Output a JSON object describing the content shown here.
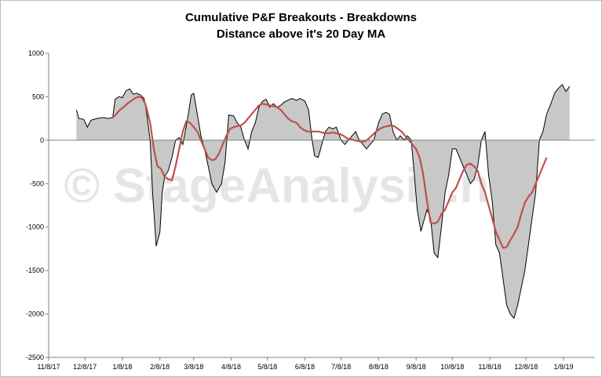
{
  "chart_data": {
    "type": "area",
    "title": "Cumulative P&F Breakouts - Breakdowns",
    "subtitle": "Distance above it's 20 Day MA",
    "watermark": "© StageAnalysis.net",
    "ylim": [
      -2500,
      1000
    ],
    "yticks": [
      1000,
      500,
      0,
      -500,
      -1000,
      -1500,
      -2000,
      -2500
    ],
    "xlim": [
      "2017-11-08",
      "2019-02-03"
    ],
    "xtick_labels": [
      {
        "date": "2017-11-08",
        "label": "11/8/17"
      },
      {
        "date": "2017-12-08",
        "label": "12/8/17"
      },
      {
        "date": "2018-01-08",
        "label": "1/8/18"
      },
      {
        "date": "2018-02-08",
        "label": "2/8/18"
      },
      {
        "date": "2018-03-08",
        "label": "3/8/18"
      },
      {
        "date": "2018-04-08",
        "label": "4/8/18"
      },
      {
        "date": "2018-05-08",
        "label": "5/8/18"
      },
      {
        "date": "2018-06-08",
        "label": "6/8/18"
      },
      {
        "date": "2018-07-08",
        "label": "7/8/18"
      },
      {
        "date": "2018-08-08",
        "label": "8/8/18"
      },
      {
        "date": "2018-09-08",
        "label": "9/8/18"
      },
      {
        "date": "2018-10-08",
        "label": "10/8/18"
      },
      {
        "date": "2018-11-08",
        "label": "11/8/18"
      },
      {
        "date": "2018-12-08",
        "label": "12/8/18"
      },
      {
        "date": "2019-01-08",
        "label": "1/8/19"
      }
    ],
    "colors": {
      "area_fill": "#c8c8c8",
      "series_line": "#000000",
      "ma_line": "#c0504d",
      "axis": "#808080"
    },
    "series": [
      {
        "type": "area",
        "points": [
          [
            "2017-12-01",
            350
          ],
          [
            "2017-12-03",
            250
          ],
          [
            "2017-12-07",
            240
          ],
          [
            "2017-12-10",
            150
          ],
          [
            "2017-12-13",
            230
          ],
          [
            "2017-12-18",
            250
          ],
          [
            "2017-12-23",
            260
          ],
          [
            "2017-12-27",
            250
          ],
          [
            "2017-12-31",
            260
          ],
          [
            "2018-01-02",
            470
          ],
          [
            "2018-01-05",
            500
          ],
          [
            "2018-01-08",
            490
          ],
          [
            "2018-01-11",
            570
          ],
          [
            "2018-01-14",
            590
          ],
          [
            "2018-01-17",
            530
          ],
          [
            "2018-01-20",
            540
          ],
          [
            "2018-01-23",
            520
          ],
          [
            "2018-01-26",
            480
          ],
          [
            "2018-01-28",
            320
          ],
          [
            "2018-01-31",
            0
          ],
          [
            "2018-02-02",
            -600
          ],
          [
            "2018-02-05",
            -1220
          ],
          [
            "2018-02-08",
            -1060
          ],
          [
            "2018-02-10",
            -600
          ],
          [
            "2018-02-12",
            -420
          ],
          [
            "2018-02-15",
            -350
          ],
          [
            "2018-02-18",
            -200
          ],
          [
            "2018-02-21",
            0
          ],
          [
            "2018-02-24",
            30
          ],
          [
            "2018-02-27",
            -50
          ],
          [
            "2018-03-01",
            100
          ],
          [
            "2018-03-03",
            250
          ],
          [
            "2018-03-06",
            520
          ],
          [
            "2018-03-08",
            540
          ],
          [
            "2018-03-11",
            300
          ],
          [
            "2018-03-14",
            50
          ],
          [
            "2018-03-17",
            -100
          ],
          [
            "2018-03-20",
            -300
          ],
          [
            "2018-03-23",
            -500
          ],
          [
            "2018-03-27",
            -600
          ],
          [
            "2018-03-31",
            -500
          ],
          [
            "2018-04-03",
            -250
          ],
          [
            "2018-04-06",
            290
          ],
          [
            "2018-04-10",
            280
          ],
          [
            "2018-04-13",
            200
          ],
          [
            "2018-04-16",
            150
          ],
          [
            "2018-04-19",
            0
          ],
          [
            "2018-04-22",
            -100
          ],
          [
            "2018-04-25",
            100
          ],
          [
            "2018-04-28",
            200
          ],
          [
            "2018-05-01",
            380
          ],
          [
            "2018-05-04",
            450
          ],
          [
            "2018-05-07",
            470
          ],
          [
            "2018-05-10",
            380
          ],
          [
            "2018-05-13",
            420
          ],
          [
            "2018-05-16",
            380
          ],
          [
            "2018-05-19",
            400
          ],
          [
            "2018-05-22",
            440
          ],
          [
            "2018-05-25",
            460
          ],
          [
            "2018-05-28",
            480
          ],
          [
            "2018-06-01",
            460
          ],
          [
            "2018-06-04",
            480
          ],
          [
            "2018-06-08",
            450
          ],
          [
            "2018-06-11",
            350
          ],
          [
            "2018-06-14",
            0
          ],
          [
            "2018-06-16",
            -180
          ],
          [
            "2018-06-19",
            -200
          ],
          [
            "2018-06-22",
            -50
          ],
          [
            "2018-06-25",
            100
          ],
          [
            "2018-06-28",
            150
          ],
          [
            "2018-07-01",
            130
          ],
          [
            "2018-07-04",
            150
          ],
          [
            "2018-07-08",
            0
          ],
          [
            "2018-07-11",
            -50
          ],
          [
            "2018-07-14",
            0
          ],
          [
            "2018-07-17",
            50
          ],
          [
            "2018-07-20",
            100
          ],
          [
            "2018-07-23",
            0
          ],
          [
            "2018-07-26",
            -50
          ],
          [
            "2018-07-29",
            -100
          ],
          [
            "2018-08-01",
            -50
          ],
          [
            "2018-08-04",
            0
          ],
          [
            "2018-08-08",
            200
          ],
          [
            "2018-08-11",
            300
          ],
          [
            "2018-08-14",
            320
          ],
          [
            "2018-08-17",
            300
          ],
          [
            "2018-08-20",
            100
          ],
          [
            "2018-08-23",
            0
          ],
          [
            "2018-08-26",
            50
          ],
          [
            "2018-08-29",
            0
          ],
          [
            "2018-09-01",
            50
          ],
          [
            "2018-09-04",
            0
          ],
          [
            "2018-09-06",
            -300
          ],
          [
            "2018-09-09",
            -800
          ],
          [
            "2018-09-12",
            -1050
          ],
          [
            "2018-09-14",
            -950
          ],
          [
            "2018-09-17",
            -800
          ],
          [
            "2018-09-20",
            -900
          ],
          [
            "2018-09-23",
            -1300
          ],
          [
            "2018-09-26",
            -1350
          ],
          [
            "2018-09-29",
            -1000
          ],
          [
            "2018-10-02",
            -600
          ],
          [
            "2018-10-05",
            -400
          ],
          [
            "2018-10-08",
            -100
          ],
          [
            "2018-10-11",
            -100
          ],
          [
            "2018-10-14",
            -200
          ],
          [
            "2018-10-17",
            -300
          ],
          [
            "2018-10-20",
            -400
          ],
          [
            "2018-10-23",
            -500
          ],
          [
            "2018-10-26",
            -450
          ],
          [
            "2018-10-29",
            -300
          ],
          [
            "2018-11-01",
            0
          ],
          [
            "2018-11-04",
            100
          ],
          [
            "2018-11-07",
            -400
          ],
          [
            "2018-11-10",
            -700
          ],
          [
            "2018-11-13",
            -1200
          ],
          [
            "2018-11-16",
            -1300
          ],
          [
            "2018-11-19",
            -1600
          ],
          [
            "2018-11-22",
            -1900
          ],
          [
            "2018-11-25",
            -2000
          ],
          [
            "2018-11-28",
            -2050
          ],
          [
            "2018-12-01",
            -1900
          ],
          [
            "2018-12-04",
            -1700
          ],
          [
            "2018-12-07",
            -1500
          ],
          [
            "2018-12-10",
            -1200
          ],
          [
            "2018-12-13",
            -900
          ],
          [
            "2018-12-16",
            -600
          ],
          [
            "2018-12-19",
            0
          ],
          [
            "2018-12-22",
            100
          ],
          [
            "2018-12-25",
            300
          ],
          [
            "2018-12-28",
            400
          ],
          [
            "2019-01-01",
            550
          ],
          [
            "2019-01-04",
            600
          ],
          [
            "2019-01-07",
            640
          ],
          [
            "2019-01-10",
            560
          ],
          [
            "2019-01-13",
            620
          ]
        ]
      },
      {
        "type": "line",
        "points": [
          [
            "2017-12-31",
            260
          ],
          [
            "2018-01-03",
            300
          ],
          [
            "2018-01-06",
            350
          ],
          [
            "2018-01-09",
            380
          ],
          [
            "2018-01-12",
            420
          ],
          [
            "2018-01-15",
            450
          ],
          [
            "2018-01-18",
            480
          ],
          [
            "2018-01-21",
            500
          ],
          [
            "2018-01-24",
            490
          ],
          [
            "2018-01-27",
            420
          ],
          [
            "2018-01-31",
            200
          ],
          [
            "2018-02-03",
            -100
          ],
          [
            "2018-02-06",
            -300
          ],
          [
            "2018-02-09",
            -330
          ],
          [
            "2018-02-12",
            -420
          ],
          [
            "2018-02-15",
            -450
          ],
          [
            "2018-02-18",
            -460
          ],
          [
            "2018-02-21",
            -300
          ],
          [
            "2018-02-24",
            -100
          ],
          [
            "2018-02-27",
            100
          ],
          [
            "2018-03-02",
            220
          ],
          [
            "2018-03-05",
            200
          ],
          [
            "2018-03-08",
            150
          ],
          [
            "2018-03-11",
            100
          ],
          [
            "2018-03-14",
            0
          ],
          [
            "2018-03-17",
            -100
          ],
          [
            "2018-03-20",
            -200
          ],
          [
            "2018-03-23",
            -230
          ],
          [
            "2018-03-26",
            -220
          ],
          [
            "2018-03-29",
            -150
          ],
          [
            "2018-04-01",
            -50
          ],
          [
            "2018-04-04",
            50
          ],
          [
            "2018-04-07",
            130
          ],
          [
            "2018-04-10",
            150
          ],
          [
            "2018-04-13",
            160
          ],
          [
            "2018-04-16",
            170
          ],
          [
            "2018-04-19",
            200
          ],
          [
            "2018-04-22",
            250
          ],
          [
            "2018-04-25",
            300
          ],
          [
            "2018-04-28",
            350
          ],
          [
            "2018-05-01",
            400
          ],
          [
            "2018-05-04",
            420
          ],
          [
            "2018-05-07",
            410
          ],
          [
            "2018-05-10",
            400
          ],
          [
            "2018-05-13",
            390
          ],
          [
            "2018-05-16",
            380
          ],
          [
            "2018-05-19",
            350
          ],
          [
            "2018-05-22",
            300
          ],
          [
            "2018-05-25",
            250
          ],
          [
            "2018-05-28",
            220
          ],
          [
            "2018-06-01",
            200
          ],
          [
            "2018-06-04",
            150
          ],
          [
            "2018-06-07",
            120
          ],
          [
            "2018-06-10",
            100
          ],
          [
            "2018-06-13",
            100
          ],
          [
            "2018-06-16",
            100
          ],
          [
            "2018-06-19",
            100
          ],
          [
            "2018-06-22",
            90
          ],
          [
            "2018-06-25",
            80
          ],
          [
            "2018-06-28",
            80
          ],
          [
            "2018-07-01",
            90
          ],
          [
            "2018-07-04",
            80
          ],
          [
            "2018-07-07",
            70
          ],
          [
            "2018-07-10",
            50
          ],
          [
            "2018-07-13",
            20
          ],
          [
            "2018-07-16",
            10
          ],
          [
            "2018-07-19",
            0
          ],
          [
            "2018-07-22",
            -10
          ],
          [
            "2018-07-25",
            -20
          ],
          [
            "2018-07-28",
            -10
          ],
          [
            "2018-07-31",
            20
          ],
          [
            "2018-08-03",
            60
          ],
          [
            "2018-08-06",
            100
          ],
          [
            "2018-08-09",
            130
          ],
          [
            "2018-08-12",
            150
          ],
          [
            "2018-08-15",
            160
          ],
          [
            "2018-08-18",
            170
          ],
          [
            "2018-08-21",
            160
          ],
          [
            "2018-08-24",
            130
          ],
          [
            "2018-08-27",
            100
          ],
          [
            "2018-08-30",
            50
          ],
          [
            "2018-09-02",
            0
          ],
          [
            "2018-09-05",
            -50
          ],
          [
            "2018-09-08",
            -100
          ],
          [
            "2018-09-11",
            -200
          ],
          [
            "2018-09-14",
            -400
          ],
          [
            "2018-09-17",
            -700
          ],
          [
            "2018-09-20",
            -950
          ],
          [
            "2018-09-23",
            -960
          ],
          [
            "2018-09-26",
            -940
          ],
          [
            "2018-09-29",
            -850
          ],
          [
            "2018-10-02",
            -800
          ],
          [
            "2018-10-05",
            -700
          ],
          [
            "2018-10-08",
            -600
          ],
          [
            "2018-10-11",
            -550
          ],
          [
            "2018-10-14",
            -450
          ],
          [
            "2018-10-17",
            -350
          ],
          [
            "2018-10-20",
            -280
          ],
          [
            "2018-10-23",
            -270
          ],
          [
            "2018-10-26",
            -300
          ],
          [
            "2018-10-29",
            -350
          ],
          [
            "2018-11-01",
            -500
          ],
          [
            "2018-11-04",
            -600
          ],
          [
            "2018-11-07",
            -750
          ],
          [
            "2018-11-10",
            -900
          ],
          [
            "2018-11-13",
            -1050
          ],
          [
            "2018-11-16",
            -1150
          ],
          [
            "2018-11-19",
            -1240
          ],
          [
            "2018-11-22",
            -1230
          ],
          [
            "2018-11-25",
            -1150
          ],
          [
            "2018-11-28",
            -1080
          ],
          [
            "2018-12-01",
            -1000
          ],
          [
            "2018-12-04",
            -850
          ],
          [
            "2018-12-07",
            -720
          ],
          [
            "2018-12-10",
            -650
          ],
          [
            "2018-12-13",
            -600
          ],
          [
            "2018-12-16",
            -500
          ],
          [
            "2018-12-19",
            -400
          ],
          [
            "2018-12-22",
            -300
          ],
          [
            "2018-12-25",
            -200
          ]
        ]
      }
    ]
  }
}
